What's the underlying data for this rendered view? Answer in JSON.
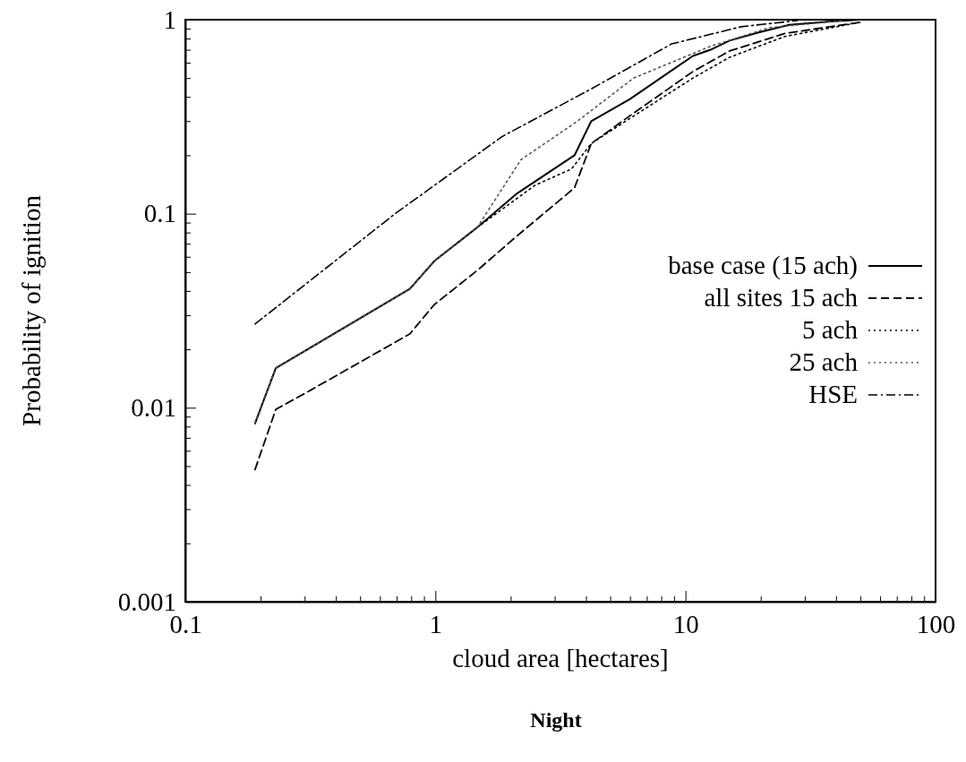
{
  "chart_data": {
    "type": "line",
    "title": "Night",
    "xlabel": "cloud area [hectares]",
    "ylabel": "Probability of ignition",
    "log": "xy",
    "grid": false,
    "legend": "right",
    "marker": "none",
    "xlim": [
      0.1,
      100
    ],
    "ylim": [
      0.001,
      1
    ],
    "xticks": [
      0.1,
      {
        "value": 0.2,
        "label": null
      },
      {
        "value": 0.3,
        "label": null
      },
      {
        "value": 0.4,
        "label": null
      },
      {
        "value": 0.5,
        "label": null
      },
      {
        "value": 0.6,
        "label": null
      },
      {
        "value": 0.7,
        "label": null
      },
      {
        "value": 0.8,
        "label": null
      },
      {
        "value": 0.9,
        "label": null
      },
      1,
      {
        "value": 2,
        "label": null
      },
      {
        "value": 3,
        "label": null
      },
      {
        "value": 4,
        "label": null
      },
      {
        "value": 5,
        "label": null
      },
      {
        "value": 6,
        "label": null
      },
      {
        "value": 7,
        "label": null
      },
      {
        "value": 8,
        "label": null
      },
      {
        "value": 9,
        "label": null
      },
      10,
      {
        "value": 20,
        "label": null
      },
      {
        "value": 30,
        "label": null
      },
      {
        "value": 40,
        "label": null
      },
      {
        "value": 50,
        "label": null
      },
      {
        "value": 60,
        "label": null
      },
      {
        "value": 70,
        "label": null
      },
      {
        "value": 80,
        "label": null
      },
      {
        "value": 90,
        "label": null
      },
      100
    ],
    "yticks": [
      0.001,
      {
        "value": 0.002,
        "label": null
      },
      {
        "value": 0.003,
        "label": null
      },
      {
        "value": 0.004,
        "label": null
      },
      {
        "value": 0.005,
        "label": null
      },
      {
        "value": 0.006,
        "label": null
      },
      {
        "value": 0.007,
        "label": null
      },
      {
        "value": 0.008,
        "label": null
      },
      {
        "value": 0.009,
        "label": null
      },
      0.01,
      {
        "value": 0.02,
        "label": null
      },
      {
        "value": 0.03,
        "label": null
      },
      {
        "value": 0.04,
        "label": null
      },
      {
        "value": 0.05,
        "label": null
      },
      {
        "value": 0.06,
        "label": null
      },
      {
        "value": 0.07,
        "label": null
      },
      {
        "value": 0.08,
        "label": null
      },
      {
        "value": 0.09,
        "label": null
      },
      0.1,
      {
        "value": 0.2,
        "label": null
      },
      {
        "value": 0.3,
        "label": null
      },
      {
        "value": 0.4,
        "label": null
      },
      {
        "value": 0.5,
        "label": null
      },
      {
        "value": 0.6,
        "label": null
      },
      {
        "value": 0.7,
        "label": null
      },
      {
        "value": 0.8,
        "label": null
      },
      {
        "value": 0.9,
        "label": null
      },
      1
    ],
    "series": [
      {
        "name": "base case (15 ach)",
        "color": "#000000",
        "line_style": "solid",
        "x": [
          0.19,
          0.23,
          0.79,
          0.99,
          1.47,
          2.1,
          3.6,
          4.2,
          6.0,
          10.7,
          12.6,
          15,
          19.6,
          26,
          38,
          50
        ],
        "values": [
          0.0083,
          0.016,
          0.041,
          0.057,
          0.085,
          0.126,
          0.2,
          0.3,
          0.39,
          0.65,
          0.7,
          0.78,
          0.86,
          0.94,
          0.98,
          1.0
        ]
      },
      {
        "name": "all sites 15 ach",
        "color": "#000000",
        "line_style": "dashed",
        "x": [
          0.19,
          0.23,
          0.32,
          0.79,
          0.99,
          1.47,
          2.1,
          3.6,
          4.2,
          6.0,
          10.7,
          15,
          25,
          50
        ],
        "values": [
          0.0048,
          0.0098,
          0.0124,
          0.024,
          0.034,
          0.051,
          0.076,
          0.136,
          0.23,
          0.32,
          0.54,
          0.69,
          0.85,
          0.97
        ]
      },
      {
        "name": "5 ach",
        "color": "#000000",
        "line_style": "dotted",
        "x": [
          0.19,
          0.23,
          0.79,
          0.99,
          1.47,
          2.5,
          3.5,
          4.2,
          6.0,
          10.7,
          15,
          25,
          50
        ],
        "values": [
          0.0083,
          0.016,
          0.041,
          0.057,
          0.085,
          0.14,
          0.17,
          0.23,
          0.31,
          0.5,
          0.64,
          0.82,
          0.97
        ]
      },
      {
        "name": "25 ach",
        "color": "#555555",
        "line_style": "dotted",
        "x": [
          0.19,
          0.23,
          0.79,
          0.99,
          1.47,
          2.2,
          3.7,
          6.2,
          12.6,
          21.7,
          43
        ],
        "values": [
          0.0083,
          0.016,
          0.041,
          0.057,
          0.085,
          0.19,
          0.3,
          0.5,
          0.73,
          0.91,
          0.99
        ]
      },
      {
        "name": "HSE",
        "color": "#000000",
        "line_style": "dashdot",
        "x": [
          0.19,
          0.69,
          1.85,
          4.2,
          8.8,
          16.7,
          28
        ],
        "values": [
          0.027,
          0.1,
          0.25,
          0.44,
          0.75,
          0.92,
          0.99
        ]
      }
    ]
  }
}
